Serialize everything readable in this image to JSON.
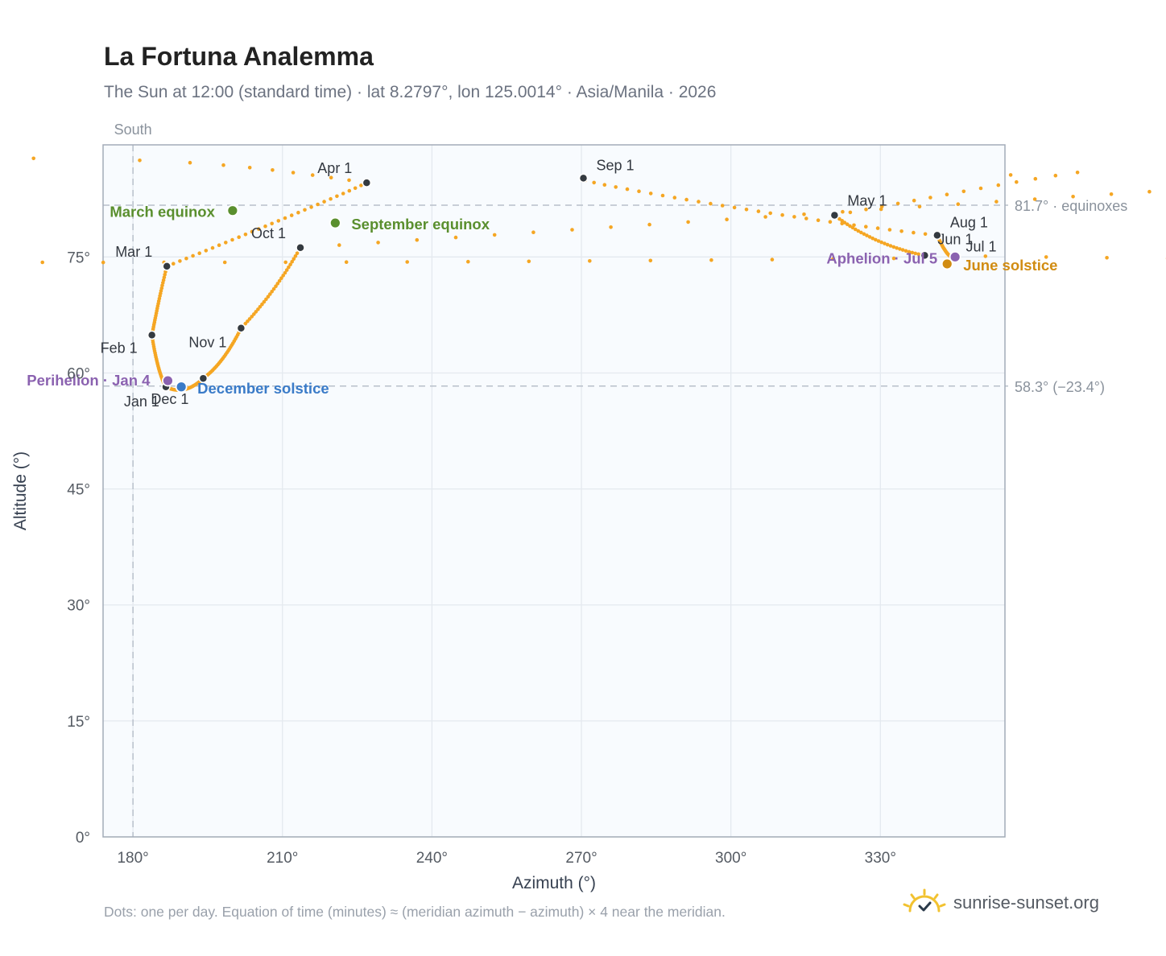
{
  "header": {
    "title": "La Fortuna Analemma",
    "subtitle": "The Sun at 12:00 (standard time) · lat 8.2797°, lon 125.0014° · Asia/Manila · 2026"
  },
  "footer": {
    "note": "Dots: one per day. Equation of time (minutes) ≈ (meridian azimuth − azimuth) × 4 near the meridian.",
    "brand": "sunrise-sunset.org"
  },
  "colors": {
    "path": "#f5a623",
    "month": "#343a40",
    "equinox": "#5a8f2e",
    "december": "#3a7bc8",
    "june": "#d18c12",
    "apsis": "#8b62b0",
    "plot_bg": "#f8fbfe",
    "grid": "#e4e9ef",
    "frame": "#a3acb8",
    "ref": "#b8c0ca"
  },
  "chart_data": {
    "type": "scatter",
    "title": "La Fortuna Analemma",
    "xlabel": "Azimuth (°)",
    "ylabel": "Altitude (°)",
    "xlim": [
      174,
      355
    ],
    "ylim": [
      0,
      89.5
    ],
    "xticks": [
      180,
      210,
      240,
      270,
      300,
      330
    ],
    "xtick_labels": [
      "180°",
      "210°",
      "240°",
      "270°",
      "300°",
      "330°"
    ],
    "yticks": [
      0,
      15,
      30,
      45,
      60,
      75
    ],
    "ytick_labels": [
      "0°",
      "15°",
      "30°",
      "45°",
      "60°",
      "75°"
    ],
    "grid": true,
    "meridian": {
      "azimuth": 180,
      "label": "South"
    },
    "reference_lines": [
      {
        "altitude": 81.7,
        "label": "81.7° · equinoxes"
      },
      {
        "altitude": 58.3,
        "label": "58.3° (−23.4°)"
      }
    ],
    "path_dates": [
      "2026-01-01",
      "2026-01-04",
      "2026-02-01",
      "2026-03-01",
      "2026-03-20",
      "2026-04-01",
      "2026-05-01",
      "2026-06-01",
      "2026-06-21",
      "2026-07-01",
      "2026-07-05",
      "2026-08-01",
      "2026-09-01",
      "2026-09-23",
      "2026-10-01",
      "2026-11-01",
      "2026-12-01",
      "2026-12-21",
      "2027-01-01"
    ],
    "month_markers": [
      {
        "label": "Jan 1",
        "az": 186.6,
        "alt": 58.2
      },
      {
        "label": "Feb 1",
        "az": 183.8,
        "alt": 64.9
      },
      {
        "label": "Mar 1",
        "az": 186.8,
        "alt": 73.8
      },
      {
        "label": "Apr 1",
        "az": 226.9,
        "alt": 84.6
      },
      {
        "label": "May 1",
        "az": 320.8,
        "alt": 80.4
      },
      {
        "label": "Jun 1",
        "az": 338.9,
        "alt": 75.2
      },
      {
        "label": "Jul 1",
        "az": 344.9,
        "alt": 74.9
      },
      {
        "label": "Aug 1",
        "az": 341.4,
        "alt": 77.8
      },
      {
        "label": "Sep 1",
        "az": 270.4,
        "alt": 85.2
      },
      {
        "label": "Oct 1",
        "az": 213.6,
        "alt": 76.2
      },
      {
        "label": "Nov 1",
        "az": 201.7,
        "alt": 65.8
      },
      {
        "label": "Dec 1",
        "az": 194.1,
        "alt": 59.3
      }
    ],
    "events": [
      {
        "label": "March equinox",
        "az": 200.0,
        "alt": 81.0,
        "kind": "equinox"
      },
      {
        "label": "September equinox",
        "az": 220.6,
        "alt": 79.4,
        "kind": "equinox"
      },
      {
        "label": "June solstice",
        "az": 343.4,
        "alt": 74.1,
        "kind": "june"
      },
      {
        "label": "December solstice",
        "az": 189.7,
        "alt": 58.2,
        "kind": "december"
      },
      {
        "label": "Perihelion · Jan 4",
        "az": 187.0,
        "alt": 59.0,
        "kind": "apsis"
      },
      {
        "label": "Aphelion · Jul 5",
        "az": 345.0,
        "alt": 75.0,
        "kind": "apsis"
      }
    ]
  }
}
